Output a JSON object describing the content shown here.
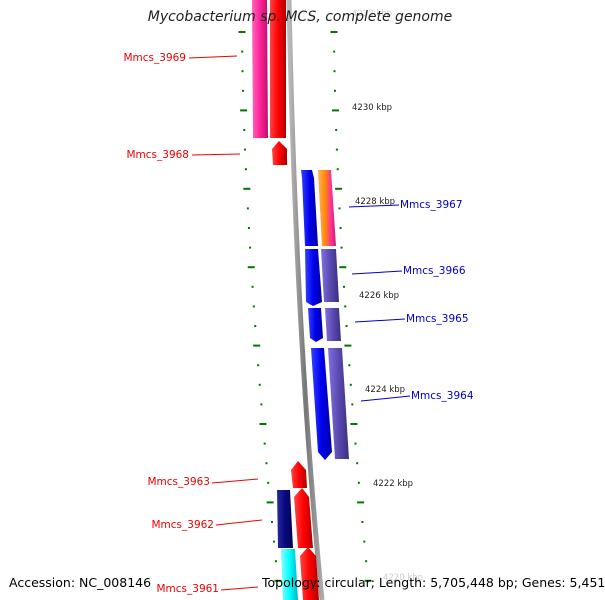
{
  "title": "Mycobacterium sp. MCS, complete genome",
  "footer": {
    "accession": "Accession: NC_008146",
    "topology": "Topology: circular; Length: 5,705,448 bp; Genes: 5,451"
  },
  "ticks": [
    "4232 kbp",
    "4230 kbp",
    "4228 kbp",
    "4226 kbp",
    "4224 kbp",
    "4222 kbp",
    "4220 kbp"
  ],
  "genes": [
    {
      "name": "Mmcs_3969",
      "strand": "forward",
      "color": "#ee0000"
    },
    {
      "name": "Mmcs_3968",
      "strand": "forward",
      "color": "#ee0000"
    },
    {
      "name": "Mmcs_3967",
      "strand": "reverse",
      "color": "#0000cc"
    },
    {
      "name": "Mmcs_3966",
      "strand": "reverse",
      "color": "#0000cc"
    },
    {
      "name": "Mmcs_3965",
      "strand": "reverse",
      "color": "#0000cc"
    },
    {
      "name": "Mmcs_3964",
      "strand": "reverse",
      "color": "#0000cc"
    },
    {
      "name": "Mmcs_3963",
      "strand": "forward",
      "color": "#ee0000"
    },
    {
      "name": "Mmcs_3962",
      "strand": "forward",
      "color": "#ee0000"
    },
    {
      "name": "Mmcs_3961",
      "strand": "forward",
      "color": "#ee0000"
    }
  ],
  "colors": {
    "forward": "#ee0000",
    "reverse": "#0000cc",
    "axis": "#888888",
    "tick": "#007700",
    "cog_pink": "#ff3399",
    "cog_navy": "#000080",
    "cog_cyan": "#00ffff",
    "cog_slate": "#6a5acd",
    "cog_orange": "#ff8c00"
  }
}
